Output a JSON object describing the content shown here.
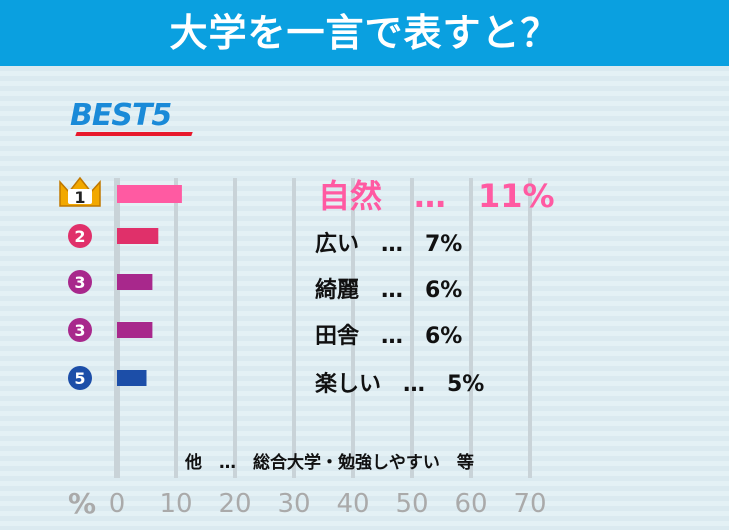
{
  "title": "大学を一言で表すと？",
  "badge": "BEST5",
  "note": "他　…　総合大学・勉強しやすい　等",
  "axis_unit": "%",
  "colors": {
    "header": "#0aa0e0",
    "top": "#ff5aa2"
  },
  "chart_data": {
    "type": "bar",
    "orientation": "horizontal",
    "xlim": [
      0,
      70
    ],
    "x_ticks": [
      "0",
      "10",
      "20",
      "30",
      "40",
      "50",
      "60",
      "70"
    ],
    "bars": [
      {
        "rank": "1",
        "category": "自然",
        "value": 11,
        "label": "自然　…　11%",
        "color": "#ff5aa2",
        "badge_color": "#f2a800"
      },
      {
        "rank": "2",
        "category": "広い",
        "value": 7,
        "label": "広い　…　7%",
        "color": "#e0306a",
        "badge_color": "#e0306a"
      },
      {
        "rank": "3",
        "category": "綺麗",
        "value": 6,
        "label": "綺麗　…　6%",
        "color": "#a8288c",
        "badge_color": "#a8288c"
      },
      {
        "rank": "3",
        "category": "田舎",
        "value": 6,
        "label": "田舎　…　6%",
        "color": "#a8288c",
        "badge_color": "#a8288c"
      },
      {
        "rank": "5",
        "category": "楽しい",
        "value": 5,
        "label": "楽しい　…　5%",
        "color": "#1c4ea8",
        "badge_color": "#1c4ea8"
      }
    ]
  }
}
